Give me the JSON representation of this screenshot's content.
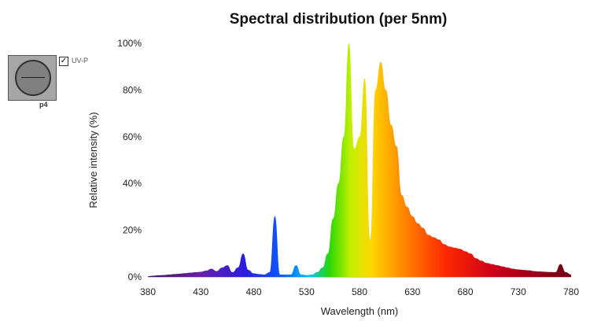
{
  "chart_data": {
    "type": "area",
    "title": "Spectral distribution (per 5nm)",
    "xlabel": "Wavelength (nm)",
    "ylabel": "Relative intensity (%)",
    "xlim": [
      380,
      780
    ],
    "ylim": [
      0,
      100
    ],
    "x_ticks": [
      "380",
      "430",
      "480",
      "530",
      "580",
      "630",
      "680",
      "730",
      "780"
    ],
    "y_ticks": [
      "0%",
      "20%",
      "40%",
      "60%",
      "80%",
      "100%"
    ],
    "grid": false,
    "series": [
      {
        "x": [
          380,
          385,
          390,
          395,
          400,
          405,
          410,
          415,
          420,
          425,
          430,
          435,
          440,
          445,
          450,
          455,
          460,
          465,
          470,
          475,
          480,
          485,
          490,
          495,
          500,
          505,
          510,
          515,
          520,
          525,
          530,
          535,
          540,
          545,
          550,
          555,
          560,
          565,
          570,
          575,
          580,
          585,
          590,
          595,
          600,
          605,
          610,
          615,
          620,
          625,
          630,
          635,
          640,
          645,
          650,
          655,
          660,
          665,
          670,
          675,
          680,
          685,
          690,
          695,
          700,
          705,
          710,
          715,
          720,
          725,
          730,
          735,
          740,
          745,
          750,
          755,
          760,
          765,
          770,
          775,
          780
        ],
        "values": [
          0.3,
          0.5,
          0.7,
          0.8,
          1,
          1.2,
          1.4,
          1.6,
          1.8,
          2,
          2.2,
          2.7,
          3.5,
          2.5,
          4,
          5,
          2,
          4,
          10,
          3,
          1.5,
          1.2,
          1,
          2,
          26,
          1,
          1,
          1,
          5,
          1,
          0.8,
          1,
          2,
          4,
          10,
          25,
          40,
          60,
          100,
          55,
          60,
          85,
          16,
          80,
          92,
          80,
          65,
          56,
          35,
          30,
          26,
          23,
          21,
          18,
          17,
          16,
          14,
          13,
          12.5,
          12,
          11,
          10,
          8,
          7,
          6,
          5.5,
          5,
          4.5,
          4,
          3.5,
          3.2,
          3,
          2.8,
          2.5,
          2.3,
          2.2,
          2.1,
          2,
          5.5,
          2,
          1
        ]
      }
    ]
  },
  "legend": {
    "checkbox_label": "UV-P",
    "checked_mark": "✓",
    "icon_caption": "p4"
  }
}
